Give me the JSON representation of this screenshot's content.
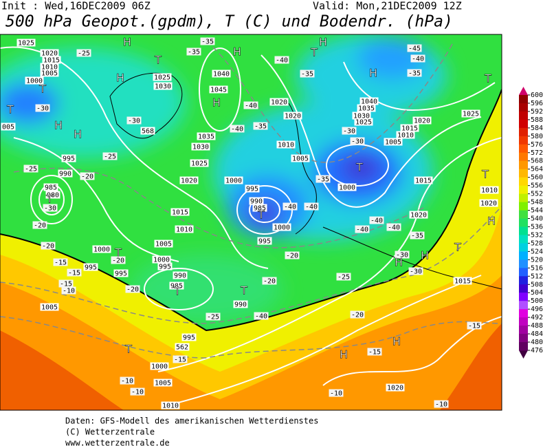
{
  "header": {
    "init": "Init : Wed,16DEC2009 06Z",
    "valid": "Valid: Mon,21DEC2009 12Z",
    "title": "500 hPa Geopot.(gpdm), T (C) und Bodendr. (hPa)"
  },
  "colorbar": {
    "levels": [
      600,
      596,
      592,
      588,
      584,
      580,
      576,
      572,
      568,
      564,
      560,
      556,
      552,
      548,
      544,
      540,
      536,
      532,
      528,
      524,
      520,
      516,
      512,
      508,
      504,
      500,
      496,
      492,
      488,
      484,
      480,
      476
    ],
    "colors": [
      "#900000",
      "#a80000",
      "#c00000",
      "#d00000",
      "#e02000",
      "#f03800",
      "#ff5800",
      "#ff7800",
      "#ff9800",
      "#ffb800",
      "#ffd800",
      "#f0f000",
      "#c0f000",
      "#80f000",
      "#40e040",
      "#20e060",
      "#00e090",
      "#00e0c0",
      "#00d0e0",
      "#00b0ff",
      "#2090ff",
      "#2060ff",
      "#2020e0",
      "#4000d0",
      "#8000ff",
      "#b050ff",
      "#e000e0",
      "#c000c0",
      "#a000a0",
      "#800080",
      "#600060"
    ]
  },
  "map_labels": [
    "1025",
    "1020",
    "1015",
    "1010",
    "1005",
    "1000",
    "T",
    "T",
    "-30",
    "005",
    "H",
    "-25",
    "H",
    "T",
    "-35",
    "-35",
    "H",
    "1040",
    "1045",
    "H",
    "1035",
    "1030",
    "1025",
    "1020",
    "1015",
    "1010",
    "1005",
    "1000",
    "995",
    "990",
    "985",
    "T",
    "T",
    "990",
    "-25",
    "995",
    "562",
    "T",
    "1000",
    "1005",
    "1010",
    "-15",
    "-10",
    "-10",
    "1040",
    "1035",
    "1030",
    "1025",
    "H",
    "-45",
    "-40",
    "-35",
    "T",
    "1025",
    "1020",
    "1015",
    "1010",
    "1005",
    "T",
    "1000",
    "1015",
    "T",
    "1010",
    "1020",
    "H",
    "T",
    "1015",
    "1020",
    "H",
    "H",
    "-15",
    "-20",
    "-15",
    "-10",
    "-10",
    "990",
    "985",
    "T",
    "995",
    "1000",
    "995",
    "1005",
    "1010",
    "1020",
    "-40",
    "-35",
    "-40",
    "-35",
    "-40",
    "T",
    "H",
    "-30",
    "-30",
    "-35",
    "-40",
    "-40",
    "-40",
    "-40",
    "-40",
    "1020",
    "1020",
    "-35",
    "-30",
    "H",
    "H",
    "-25",
    "-30",
    "-20",
    "-40",
    "1000",
    "995",
    "990",
    "985",
    "980",
    "T",
    "-30",
    "-25",
    "-20",
    "-20",
    "-20",
    "-25",
    "-20",
    "995",
    "T",
    "-20",
    "1000",
    "995",
    "-15",
    "-15",
    "-15",
    "-10",
    "1005",
    "H",
    "1030",
    "1025",
    "-30",
    "568",
    "H",
    "-20"
  ],
  "footer": [
    "Daten: GFS-Modell des amerikanischen Wetterdienstes",
    "(C) Wetterzentrale",
    "www.wetterzentrale.de"
  ]
}
